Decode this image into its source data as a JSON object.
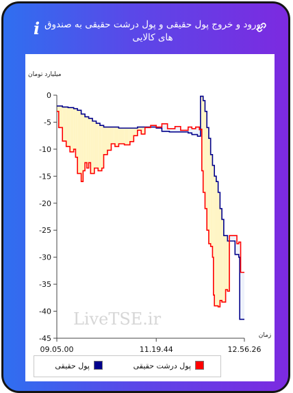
{
  "header": {
    "title": "ورود و خروج پول حقیقی و پول درشت حقیقی به صندوق های کالایی",
    "info_glyph": "i"
  },
  "watermark": "LiveTSE.ir",
  "colors": {
    "real_money": "#00008b",
    "big_real_money": "#ff0000",
    "area_fill": "#fff5c4",
    "area_fill_alt": "#eef2fb"
  },
  "legend": {
    "real_money": "پول حقیقی",
    "big_real_money": "پول درشت حقیقی"
  },
  "chart_data": {
    "type": "line",
    "ylabel": "میلیارد تومان",
    "xlabel": "زمان",
    "ylim": [
      -45,
      0
    ],
    "yticks": [
      0,
      -5,
      -10,
      -15,
      -20,
      -25,
      -30,
      -35,
      -40,
      -45
    ],
    "xlim": [
      0,
      1
    ],
    "xticks": [
      {
        "x": 0,
        "label": "09.05.00"
      },
      {
        "x": 0.53,
        "label": "11.19.44"
      },
      {
        "x": 1,
        "label": "12.56.26"
      }
    ],
    "grid": false,
    "legend_position": "bottom",
    "series": [
      {
        "name": "پول حقیقی",
        "color": "#00008b",
        "points": [
          [
            0,
            -2
          ],
          [
            0.03,
            -2.2
          ],
          [
            0.06,
            -2.3
          ],
          [
            0.09,
            -2.5
          ],
          [
            0.11,
            -2.8
          ],
          [
            0.13,
            -3.5
          ],
          [
            0.15,
            -4
          ],
          [
            0.17,
            -4.3
          ],
          [
            0.19,
            -4.8
          ],
          [
            0.21,
            -5.2
          ],
          [
            0.23,
            -5.6
          ],
          [
            0.25,
            -5.9
          ],
          [
            0.3,
            -5.9
          ],
          [
            0.33,
            -6.1
          ],
          [
            0.38,
            -6.1
          ],
          [
            0.43,
            -5.9
          ],
          [
            0.49,
            -5.9
          ],
          [
            0.53,
            -6.1
          ],
          [
            0.56,
            -6.7
          ],
          [
            0.6,
            -6.8
          ],
          [
            0.66,
            -6.8
          ],
          [
            0.7,
            -7
          ],
          [
            0.72,
            -7.3
          ],
          [
            0.75,
            -7.6
          ],
          [
            0.763,
            -7.6
          ],
          [
            0.766,
            -0.2
          ],
          [
            0.78,
            -1
          ],
          [
            0.79,
            -3
          ],
          [
            0.8,
            -6
          ],
          [
            0.81,
            -8
          ],
          [
            0.82,
            -11
          ],
          [
            0.83,
            -13
          ],
          [
            0.84,
            -15
          ],
          [
            0.85,
            -16
          ],
          [
            0.86,
            -18
          ],
          [
            0.87,
            -21
          ],
          [
            0.88,
            -23
          ],
          [
            0.89,
            -26
          ],
          [
            0.91,
            -27
          ],
          [
            0.93,
            -27
          ],
          [
            0.95,
            -29.5
          ],
          [
            0.97,
            -30
          ],
          [
            0.975,
            -41.5
          ],
          [
            1,
            -41.5
          ]
        ]
      },
      {
        "name": "پول درشت حقیقی",
        "color": "#ff0000",
        "points": [
          [
            0,
            -3
          ],
          [
            0.01,
            -6
          ],
          [
            0.03,
            -8.5
          ],
          [
            0.05,
            -9.5
          ],
          [
            0.07,
            -10.5
          ],
          [
            0.09,
            -10
          ],
          [
            0.1,
            -11.5
          ],
          [
            0.11,
            -14.5
          ],
          [
            0.13,
            -16
          ],
          [
            0.14,
            -14
          ],
          [
            0.15,
            -12.5
          ],
          [
            0.16,
            -13.5
          ],
          [
            0.17,
            -12.5
          ],
          [
            0.18,
            -14.5
          ],
          [
            0.2,
            -13.5
          ],
          [
            0.22,
            -14
          ],
          [
            0.24,
            -13.5
          ],
          [
            0.25,
            -11
          ],
          [
            0.27,
            -10.2
          ],
          [
            0.29,
            -9
          ],
          [
            0.31,
            -9.5
          ],
          [
            0.33,
            -9
          ],
          [
            0.36,
            -9.2
          ],
          [
            0.39,
            -8.6
          ],
          [
            0.41,
            -7.5
          ],
          [
            0.43,
            -6.5
          ],
          [
            0.45,
            -7.2
          ],
          [
            0.47,
            -6
          ],
          [
            0.5,
            -5.6
          ],
          [
            0.53,
            -5.9
          ],
          [
            0.56,
            -5.3
          ],
          [
            0.59,
            -6.2
          ],
          [
            0.63,
            -5.8
          ],
          [
            0.66,
            -6.5
          ],
          [
            0.7,
            -5.9
          ],
          [
            0.72,
            -6.2
          ],
          [
            0.74,
            -5.9
          ],
          [
            0.76,
            -6.4
          ],
          [
            0.77,
            -6.3
          ],
          [
            0.773,
            -14
          ],
          [
            0.78,
            -18
          ],
          [
            0.79,
            -21
          ],
          [
            0.8,
            -25
          ],
          [
            0.81,
            -27.5
          ],
          [
            0.82,
            -28
          ],
          [
            0.83,
            -30
          ],
          [
            0.835,
            -37
          ],
          [
            0.84,
            -39
          ],
          [
            0.86,
            -39.2
          ],
          [
            0.87,
            -38
          ],
          [
            0.88,
            -38.3
          ],
          [
            0.9,
            -36
          ],
          [
            0.91,
            -36.3
          ],
          [
            0.92,
            -26
          ],
          [
            0.94,
            -26
          ],
          [
            0.96,
            -27.5
          ],
          [
            0.97,
            -27.2
          ],
          [
            0.98,
            -32.8
          ],
          [
            1,
            -32.8
          ]
        ]
      }
    ]
  }
}
